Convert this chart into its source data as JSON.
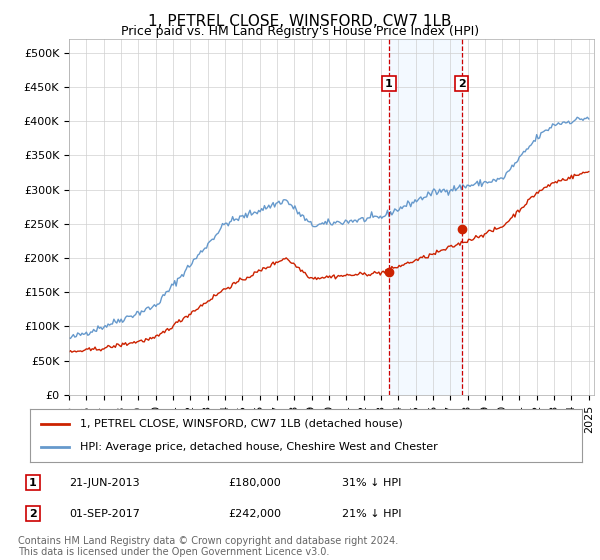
{
  "title": "1, PETREL CLOSE, WINSFORD, CW7 1LB",
  "subtitle": "Price paid vs. HM Land Registry's House Price Index (HPI)",
  "yticks": [
    0,
    50000,
    100000,
    150000,
    200000,
    250000,
    300000,
    350000,
    400000,
    450000,
    500000
  ],
  "ytick_labels": [
    "£0",
    "£50K",
    "£100K",
    "£150K",
    "£200K",
    "£250K",
    "£300K",
    "£350K",
    "£400K",
    "£450K",
    "£500K"
  ],
  "hpi_color": "#6699cc",
  "price_color": "#cc2200",
  "marker1_year": 2013.47,
  "marker2_year": 2017.67,
  "marker1_price": 180000,
  "marker2_price": 242000,
  "shade_color": "#ddeeff",
  "legend_label_red": "1, PETREL CLOSE, WINSFORD, CW7 1LB (detached house)",
  "legend_label_blue": "HPI: Average price, detached house, Cheshire West and Chester",
  "ann1_box": "1",
  "ann1_date": "21-JUN-2013",
  "ann1_price": "£180,000",
  "ann1_hpi": "31% ↓ HPI",
  "ann2_box": "2",
  "ann2_date": "01-SEP-2017",
  "ann2_price": "£242,000",
  "ann2_hpi": "21% ↓ HPI",
  "footer": "Contains HM Land Registry data © Crown copyright and database right 2024.\nThis data is licensed under the Open Government Licence v3.0.",
  "title_fontsize": 11,
  "subtitle_fontsize": 9,
  "tick_fontsize": 8,
  "legend_fontsize": 8,
  "ann_fontsize": 8,
  "footer_fontsize": 7
}
